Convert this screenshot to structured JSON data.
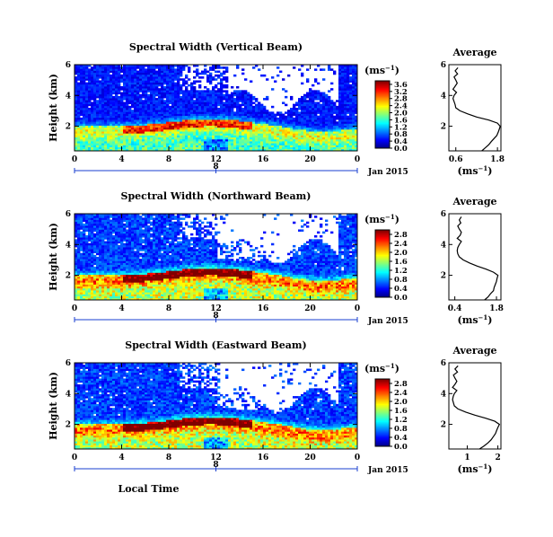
{
  "chart_data": [
    {
      "type": "heatmap",
      "title": "Spectral Width (Vertical Beam)",
      "ylabel": "Height (km)",
      "x_ticks": [
        "0",
        "4",
        "8",
        "12",
        "16",
        "20",
        "0"
      ],
      "y_ticks": [
        "2",
        "4",
        "6"
      ],
      "xlim": [
        0,
        24
      ],
      "ylim": [
        0.4,
        6
      ],
      "date_label": "Jan 2015",
      "date_start": "8",
      "date_end": "9",
      "colorbar": {
        "unit": "(ms",
        "unit_exp": "−1",
        "unit_close": ")",
        "ticks": [
          "0.0",
          "0.4",
          "0.8",
          "1.2",
          "1.6",
          "2.0",
          "2.4",
          "2.8",
          "3.2",
          "3.6"
        ],
        "range": [
          0,
          3.8
        ]
      },
      "average": {
        "title": "Average",
        "x_ticks": [
          "0.6",
          "1.8"
        ],
        "xlim": [
          0.4,
          1.9
        ],
        "y_ticks": [
          "2",
          "4",
          "6"
        ],
        "xlabel": "(ms",
        "xlabel_exp": "−1",
        "xlabel_close": ")",
        "profile": {
          "height": [
            0.4,
            0.6,
            0.8,
            1.0,
            1.2,
            1.4,
            1.6,
            1.8,
            2.0,
            2.2,
            2.4,
            2.6,
            2.8,
            3.0,
            3.2,
            3.4,
            3.6,
            3.8,
            4.0,
            4.2,
            4.4,
            4.6,
            4.8,
            5.0,
            5.2,
            5.4,
            5.6,
            5.8
          ],
          "width": [
            1.35,
            1.45,
            1.55,
            1.62,
            1.7,
            1.78,
            1.82,
            1.85,
            1.88,
            1.8,
            1.55,
            1.2,
            0.95,
            0.72,
            0.6,
            0.58,
            0.55,
            0.52,
            0.55,
            0.62,
            0.52,
            0.58,
            0.64,
            0.6,
            0.55,
            0.65,
            0.58,
            0.66
          ]
        }
      }
    },
    {
      "type": "heatmap",
      "title": "Spectral Width (Northward Beam)",
      "ylabel": "Height (km)",
      "x_ticks": [
        "0",
        "4",
        "8",
        "12",
        "16",
        "20",
        "0"
      ],
      "y_ticks": [
        "2",
        "4",
        "6"
      ],
      "xlim": [
        0,
        24
      ],
      "ylim": [
        0.4,
        6
      ],
      "date_label": "Jan 2015",
      "date_start": "8",
      "date_end": "9",
      "colorbar": {
        "unit": "(ms",
        "unit_exp": "−1",
        "unit_close": ")",
        "ticks": [
          "0.0",
          "0.4",
          "0.8",
          "1.2",
          "1.6",
          "2.0",
          "2.4",
          "2.8"
        ],
        "range": [
          0,
          3.0
        ]
      },
      "average": {
        "title": "Average",
        "x_ticks": [
          "0.4",
          "1.8"
        ],
        "xlim": [
          0.2,
          1.95
        ],
        "y_ticks": [
          "2",
          "4",
          "6"
        ],
        "xlabel": "(ms",
        "xlabel_exp": "−1",
        "xlabel_close": ")",
        "profile": {
          "height": [
            0.4,
            0.6,
            0.8,
            1.0,
            1.2,
            1.4,
            1.6,
            1.8,
            2.0,
            2.2,
            2.4,
            2.6,
            2.8,
            3.0,
            3.2,
            3.4,
            3.6,
            3.8,
            4.0,
            4.2,
            4.4,
            4.6,
            4.8,
            5.0,
            5.2,
            5.4,
            5.6,
            5.8
          ],
          "width": [
            1.4,
            1.52,
            1.6,
            1.7,
            1.72,
            1.76,
            1.8,
            1.82,
            1.85,
            1.7,
            1.45,
            1.15,
            0.9,
            0.68,
            0.55,
            0.5,
            0.48,
            0.5,
            0.55,
            0.62,
            0.48,
            0.58,
            0.62,
            0.55,
            0.5,
            0.6,
            0.55,
            0.62
          ]
        }
      }
    },
    {
      "type": "heatmap",
      "title": "Spectral Width (Eastward Beam)",
      "ylabel": "Height (km)",
      "xlabel": "Local Time",
      "x_ticks": [
        "0",
        "4",
        "8",
        "12",
        "16",
        "20",
        "0"
      ],
      "y_ticks": [
        "2",
        "4",
        "6"
      ],
      "xlim": [
        0,
        24
      ],
      "ylim": [
        0.4,
        6
      ],
      "date_label": "Jan 2015",
      "date_start": "8",
      "date_end": "9",
      "colorbar": {
        "unit": "(ms",
        "unit_exp": "−1",
        "unit_close": ")",
        "ticks": [
          "0.0",
          "0.4",
          "0.8",
          "1.2",
          "1.6",
          "2.0",
          "2.4",
          "2.8"
        ],
        "range": [
          0,
          3.0
        ]
      },
      "average": {
        "title": "Average",
        "x_ticks": [
          "1",
          "2"
        ],
        "xlim": [
          0.4,
          2.1
        ],
        "y_ticks": [
          "2",
          "4",
          "6"
        ],
        "xlabel": "(ms",
        "xlabel_exp": "−1",
        "xlabel_close": ")",
        "profile": {
          "height": [
            0.4,
            0.6,
            0.8,
            1.0,
            1.2,
            1.4,
            1.6,
            1.8,
            2.0,
            2.2,
            2.4,
            2.6,
            2.8,
            3.0,
            3.2,
            3.4,
            3.6,
            3.8,
            4.0,
            4.2,
            4.4,
            4.6,
            4.8,
            5.0,
            5.2,
            5.4,
            5.6,
            5.8
          ],
          "width": [
            1.4,
            1.55,
            1.68,
            1.78,
            1.85,
            1.92,
            1.96,
            2.0,
            2.05,
            1.9,
            1.6,
            1.25,
            0.95,
            0.7,
            0.58,
            0.55,
            0.52,
            0.54,
            0.58,
            0.66,
            0.52,
            0.6,
            0.66,
            0.6,
            0.55,
            0.68,
            0.6,
            0.7
          ]
        }
      }
    }
  ]
}
